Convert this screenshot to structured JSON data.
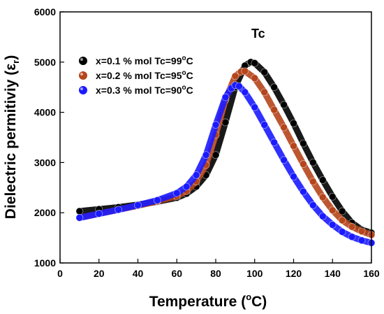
{
  "chart_data": {
    "type": "scatter",
    "annotation": "Tc",
    "xlabel": "Temperature",
    "xlabel_unit_base": "(",
    "xlabel_unit_sup": "o",
    "xlabel_unit_rest": "C)",
    "ylabel": "Dielectric permitiviy (ε",
    "ylabel_sub": "r",
    "ylabel_end": ")",
    "xlim": [
      0,
      160
    ],
    "ylim": [
      1000,
      6000
    ],
    "xticks": [
      0,
      20,
      40,
      60,
      80,
      100,
      120,
      140,
      160
    ],
    "yticks": [
      1000,
      2000,
      3000,
      4000,
      5000,
      6000
    ],
    "grid": false,
    "legend_position": "top-left",
    "series": [
      {
        "name": "x=0.1 % mol Tc=99°C",
        "name_pre": "x=0.1 % mol Tc=99",
        "name_sup": "o",
        "name_post": "C",
        "color": "#000000",
        "x": [
          10,
          20,
          30,
          40,
          50,
          60,
          65,
          70,
          75,
          80,
          85,
          90,
          95,
          98,
          100,
          105,
          110,
          115,
          120,
          125,
          130,
          135,
          140,
          145,
          150,
          155,
          160
        ],
        "y": [
          2030,
          2070,
          2110,
          2160,
          2220,
          2300,
          2380,
          2520,
          2750,
          3150,
          3800,
          4500,
          4930,
          5000,
          4980,
          4800,
          4500,
          4150,
          3780,
          3380,
          3000,
          2650,
          2320,
          2030,
          1800,
          1660,
          1600
        ]
      },
      {
        "name": "x=0.2 % mol Tc=95°C",
        "name_pre": "x=0.2 % mol Tc=95",
        "name_sup": "o",
        "name_post": "C",
        "color": "#b5451b",
        "x": [
          10,
          20,
          30,
          40,
          50,
          60,
          65,
          70,
          75,
          80,
          85,
          90,
          93,
          95,
          100,
          105,
          110,
          115,
          120,
          125,
          130,
          135,
          140,
          145,
          150,
          155,
          160
        ],
        "y": [
          1900,
          1980,
          2060,
          2140,
          2230,
          2330,
          2430,
          2620,
          2950,
          3550,
          4250,
          4720,
          4810,
          4820,
          4680,
          4400,
          4050,
          3700,
          3330,
          2970,
          2620,
          2310,
          2050,
          1850,
          1720,
          1630,
          1560
        ]
      },
      {
        "name": "x=0.3 % mol Tc=90°C",
        "name_pre": "x=0.3 % mol Tc=90",
        "name_sup": "o",
        "name_post": "C",
        "color": "#1a1aff",
        "x": [
          10,
          20,
          30,
          40,
          50,
          60,
          65,
          70,
          75,
          80,
          85,
          88,
          90,
          92,
          95,
          100,
          105,
          110,
          115,
          120,
          125,
          130,
          135,
          140,
          145,
          150,
          155,
          160
        ],
        "y": [
          1900,
          1980,
          2060,
          2150,
          2250,
          2390,
          2520,
          2750,
          3150,
          3750,
          4300,
          4480,
          4540,
          4520,
          4400,
          4100,
          3750,
          3400,
          3050,
          2720,
          2420,
          2150,
          1930,
          1760,
          1620,
          1520,
          1450,
          1400
        ]
      }
    ]
  }
}
